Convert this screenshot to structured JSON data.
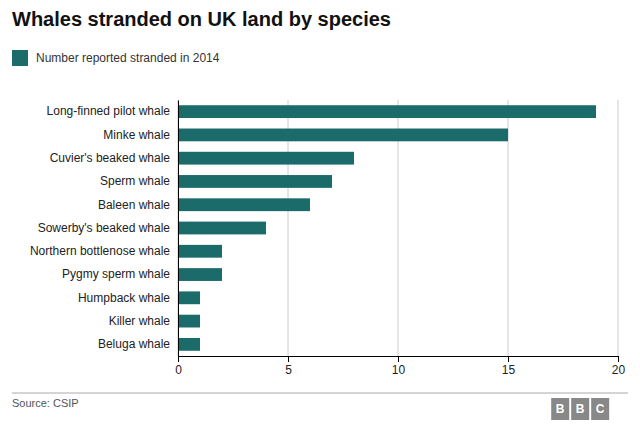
{
  "chart_data": {
    "type": "bar",
    "orientation": "horizontal",
    "title": "Whales stranded on UK land by species",
    "categories": [
      "Beluga whale",
      "Killer whale",
      "Humpback whale",
      "Pygmy sperm whale",
      "Northern bottlenose whale",
      "Sowerby's beaked whale",
      "Baleen whale",
      "Sperm whale",
      "Cuvier's beaked whale",
      "Minke whale",
      "Long-finned pilot whale"
    ],
    "series": [
      {
        "name": "Number reported stranded in 2014",
        "color": "#1b6b6b",
        "values": [
          1,
          1,
          1,
          2,
          2,
          4,
          6,
          7,
          8,
          15,
          19
        ]
      }
    ],
    "xlim": [
      0,
      20
    ],
    "xticks": [
      0,
      5,
      10,
      15,
      20
    ],
    "grid": true,
    "legend": "top-left",
    "annotations": [
      "Source: CSIP",
      "B",
      "B",
      "C"
    ]
  }
}
